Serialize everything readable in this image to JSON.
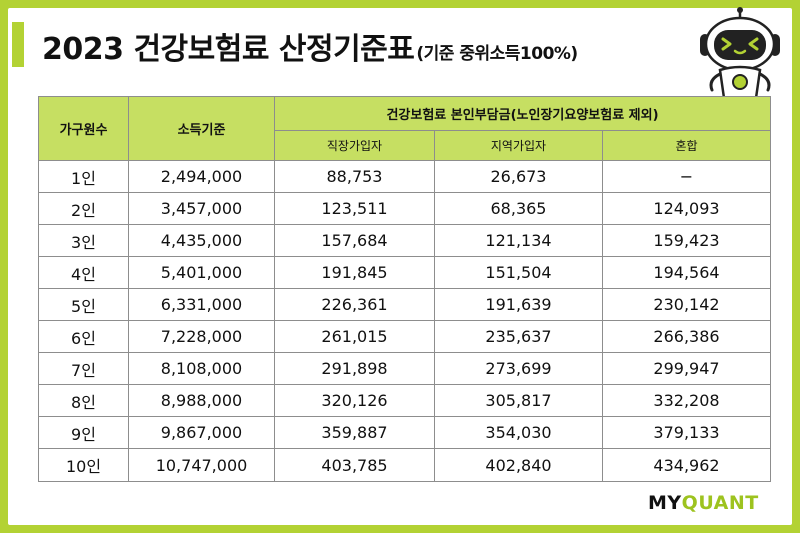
{
  "title": {
    "main": "2023 건강보험료 산정기준표",
    "sub": "(기준 중위소득100%)"
  },
  "table": {
    "headers": {
      "household": "가구원수",
      "income": "소득기준",
      "premium_group": "건강보험료 본인부담금(노인장기요양보험료 제외)",
      "employee": "직장가입자",
      "regional": "지역가입자",
      "mixed": "혼합"
    },
    "rows": [
      {
        "household": "1인",
        "income": "2,494,000",
        "employee": "88,753",
        "regional": "26,673",
        "mixed": "−"
      },
      {
        "household": "2인",
        "income": "3,457,000",
        "employee": "123,511",
        "regional": "68,365",
        "mixed": "124,093"
      },
      {
        "household": "3인",
        "income": "4,435,000",
        "employee": "157,684",
        "regional": "121,134",
        "mixed": "159,423"
      },
      {
        "household": "4인",
        "income": "5,401,000",
        "employee": "191,845",
        "regional": "151,504",
        "mixed": "194,564"
      },
      {
        "household": "5인",
        "income": "6,331,000",
        "employee": "226,361",
        "regional": "191,639",
        "mixed": "230,142"
      },
      {
        "household": "6인",
        "income": "7,228,000",
        "employee": "261,015",
        "regional": "235,637",
        "mixed": "266,386"
      },
      {
        "household": "7인",
        "income": "8,108,000",
        "employee": "291,898",
        "regional": "273,699",
        "mixed": "299,947"
      },
      {
        "household": "8인",
        "income": "8,988,000",
        "employee": "320,126",
        "regional": "305,817",
        "mixed": "332,208"
      },
      {
        "household": "9인",
        "income": "9,867,000",
        "employee": "359,887",
        "regional": "354,030",
        "mixed": "379,133"
      },
      {
        "household": "10인",
        "income": "10,747,000",
        "employee": "403,785",
        "regional": "402,840",
        "mixed": "434,962"
      }
    ]
  },
  "brand": {
    "my": "MY",
    "quant": "QUANT"
  },
  "colors": {
    "accent": "#b3d234",
    "header_bg": "#c6df62",
    "brand_green": "#9dc31f"
  },
  "icons": {
    "mascot": "robot-mascot-icon"
  }
}
